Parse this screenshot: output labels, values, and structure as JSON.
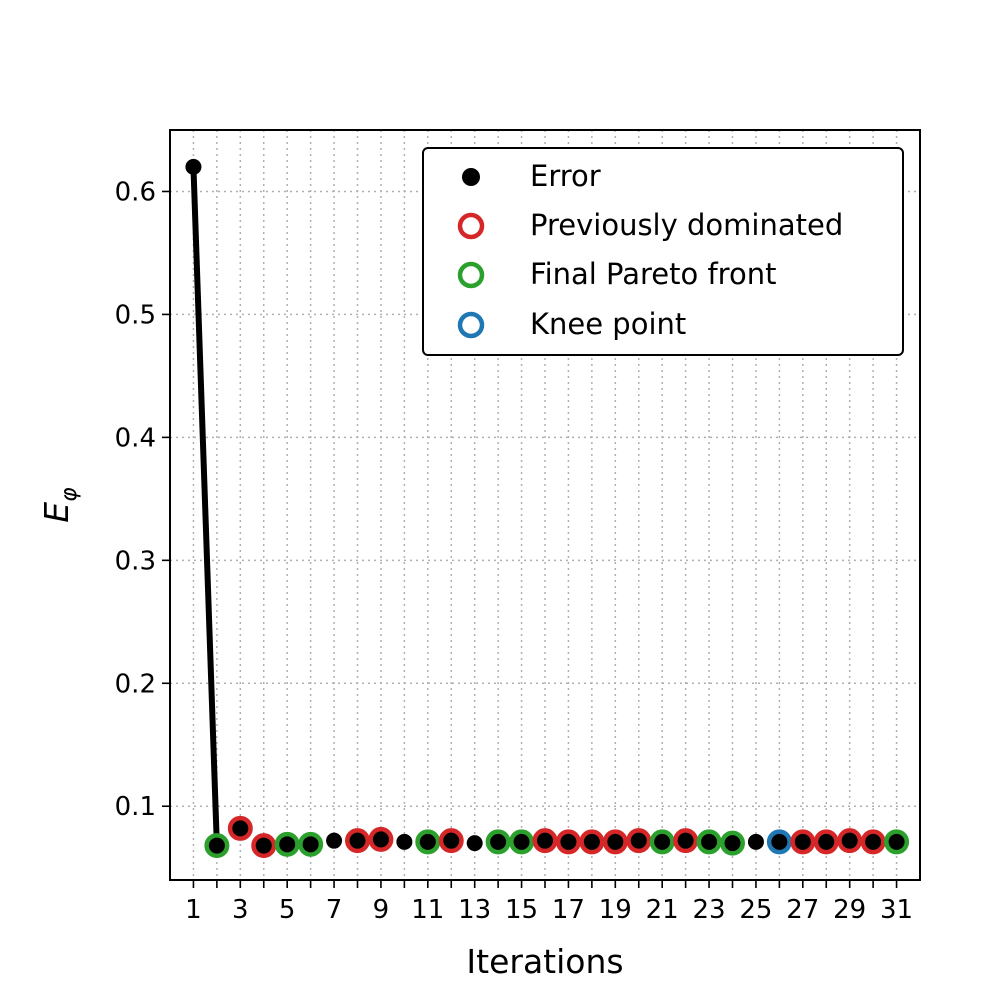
{
  "chart_data": {
    "type": "scatter",
    "xlabel": "Iterations",
    "ylabel_main": "E",
    "ylabel_sub": "φ",
    "xlim": [
      0.0,
      32.0
    ],
    "ylim": [
      0.04,
      0.65
    ],
    "x_ticks": [
      1,
      3,
      5,
      7,
      9,
      11,
      13,
      15,
      17,
      19,
      21,
      23,
      25,
      27,
      29,
      31
    ],
    "y_ticks": [
      0.1,
      0.2,
      0.3,
      0.4,
      0.5,
      0.6
    ],
    "y_tick_labels": [
      "0.1",
      "0.2",
      "0.3",
      "0.4",
      "0.5",
      "0.6"
    ],
    "grid": true,
    "legend_position": "top-right",
    "colors": {
      "error": "#000000",
      "previously_dominated": "#d62728",
      "final_pareto_front": "#2ca02c",
      "knee_point": "#1f77b4"
    },
    "legend": [
      {
        "key": "error",
        "label": "Error"
      },
      {
        "key": "previously_dominated",
        "label": "Previously dominated"
      },
      {
        "key": "final_pareto_front",
        "label": "Final Pareto front"
      },
      {
        "key": "knee_point",
        "label": "Knee point"
      }
    ],
    "error_line": {
      "x": [
        1,
        2
      ],
      "y": [
        0.62,
        0.068
      ]
    },
    "points": [
      {
        "x": 1,
        "y": 0.62,
        "status": "none"
      },
      {
        "x": 2,
        "y": 0.068,
        "status": "final_pareto_front"
      },
      {
        "x": 3,
        "y": 0.082,
        "status": "previously_dominated"
      },
      {
        "x": 4,
        "y": 0.068,
        "status": "previously_dominated"
      },
      {
        "x": 5,
        "y": 0.069,
        "status": "final_pareto_front"
      },
      {
        "x": 6,
        "y": 0.069,
        "status": "final_pareto_front"
      },
      {
        "x": 7,
        "y": 0.072,
        "status": "none"
      },
      {
        "x": 8,
        "y": 0.072,
        "status": "previously_dominated"
      },
      {
        "x": 9,
        "y": 0.073,
        "status": "previously_dominated"
      },
      {
        "x": 10,
        "y": 0.071,
        "status": "none"
      },
      {
        "x": 11,
        "y": 0.071,
        "status": "final_pareto_front"
      },
      {
        "x": 12,
        "y": 0.072,
        "status": "previously_dominated"
      },
      {
        "x": 13,
        "y": 0.07,
        "status": "none"
      },
      {
        "x": 14,
        "y": 0.071,
        "status": "final_pareto_front"
      },
      {
        "x": 15,
        "y": 0.071,
        "status": "final_pareto_front"
      },
      {
        "x": 16,
        "y": 0.072,
        "status": "previously_dominated"
      },
      {
        "x": 17,
        "y": 0.071,
        "status": "previously_dominated"
      },
      {
        "x": 18,
        "y": 0.071,
        "status": "previously_dominated"
      },
      {
        "x": 19,
        "y": 0.071,
        "status": "previously_dominated"
      },
      {
        "x": 20,
        "y": 0.072,
        "status": "previously_dominated"
      },
      {
        "x": 21,
        "y": 0.071,
        "status": "final_pareto_front"
      },
      {
        "x": 22,
        "y": 0.072,
        "status": "previously_dominated"
      },
      {
        "x": 23,
        "y": 0.071,
        "status": "final_pareto_front"
      },
      {
        "x": 24,
        "y": 0.07,
        "status": "final_pareto_front"
      },
      {
        "x": 25,
        "y": 0.071,
        "status": "none"
      },
      {
        "x": 26,
        "y": 0.071,
        "status": "knee_point"
      },
      {
        "x": 27,
        "y": 0.071,
        "status": "previously_dominated"
      },
      {
        "x": 28,
        "y": 0.071,
        "status": "previously_dominated"
      },
      {
        "x": 29,
        "y": 0.072,
        "status": "previously_dominated"
      },
      {
        "x": 30,
        "y": 0.071,
        "status": "previously_dominated"
      },
      {
        "x": 31,
        "y": 0.071,
        "status": "final_pareto_front"
      }
    ]
  }
}
